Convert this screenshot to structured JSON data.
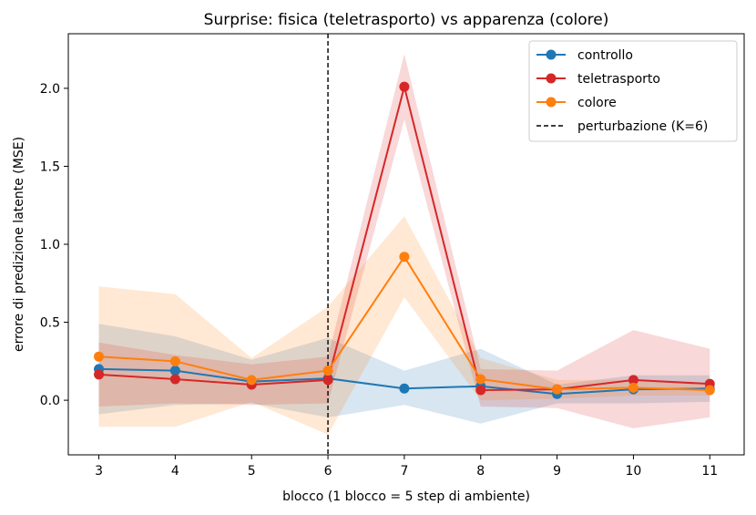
{
  "chart_data": {
    "type": "line",
    "title": "Surprise: fisica (teletrasporto) vs apparenza (colore)",
    "xlabel": "blocco (1 blocco = 5 step di ambiente)",
    "ylabel": "errore di predizione latente (MSE)",
    "x": [
      3,
      4,
      5,
      6,
      7,
      8,
      9,
      10,
      11
    ],
    "xlim": [
      2.6,
      11.45
    ],
    "ylim": [
      -0.35,
      2.35
    ],
    "xticks": [
      "3",
      "4",
      "5",
      "6",
      "7",
      "8",
      "9",
      "10",
      "11"
    ],
    "yticks": [
      {
        "value": 0.0,
        "label": "0.0"
      },
      {
        "value": 0.5,
        "label": "0.5"
      },
      {
        "value": 1.0,
        "label": "1.0"
      },
      {
        "value": 1.5,
        "label": "1.5"
      },
      {
        "value": 2.0,
        "label": "2.0"
      }
    ],
    "grid": false,
    "legend_position": "top-right",
    "series": [
      {
        "name": "controllo",
        "color": "#1f77b4",
        "values": [
          0.2,
          0.19,
          0.12,
          0.14,
          0.075,
          0.09,
          0.04,
          0.07,
          0.075
        ],
        "band_low": [
          -0.09,
          -0.03,
          -0.02,
          -0.11,
          -0.03,
          -0.15,
          -0.02,
          -0.02,
          -0.01
        ],
        "band_high": [
          0.49,
          0.41,
          0.26,
          0.4,
          0.19,
          0.33,
          0.1,
          0.16,
          0.16
        ]
      },
      {
        "name": "teletrasporto",
        "color": "#d62728",
        "values": [
          0.165,
          0.135,
          0.1,
          0.13,
          2.01,
          0.065,
          0.07,
          0.13,
          0.105
        ],
        "band_low": [
          -0.04,
          -0.02,
          -0.03,
          -0.02,
          1.8,
          -0.04,
          -0.05,
          -0.18,
          -0.11
        ],
        "band_high": [
          0.37,
          0.29,
          0.23,
          0.28,
          2.22,
          0.2,
          0.19,
          0.45,
          0.33
        ]
      },
      {
        "name": "colore",
        "color": "#ff7f0e",
        "values": [
          0.28,
          0.25,
          0.13,
          0.19,
          0.92,
          0.135,
          0.07,
          0.08,
          0.065
        ],
        "band_low": [
          -0.17,
          -0.17,
          -0.01,
          -0.22,
          0.66,
          0.0,
          0.01,
          0.03,
          0.03
        ],
        "band_high": [
          0.73,
          0.68,
          0.27,
          0.6,
          1.18,
          0.27,
          0.13,
          0.13,
          0.1
        ]
      }
    ],
    "vline": {
      "x": 6,
      "label": "perturbazione (K=6)",
      "color": "#000000"
    }
  }
}
